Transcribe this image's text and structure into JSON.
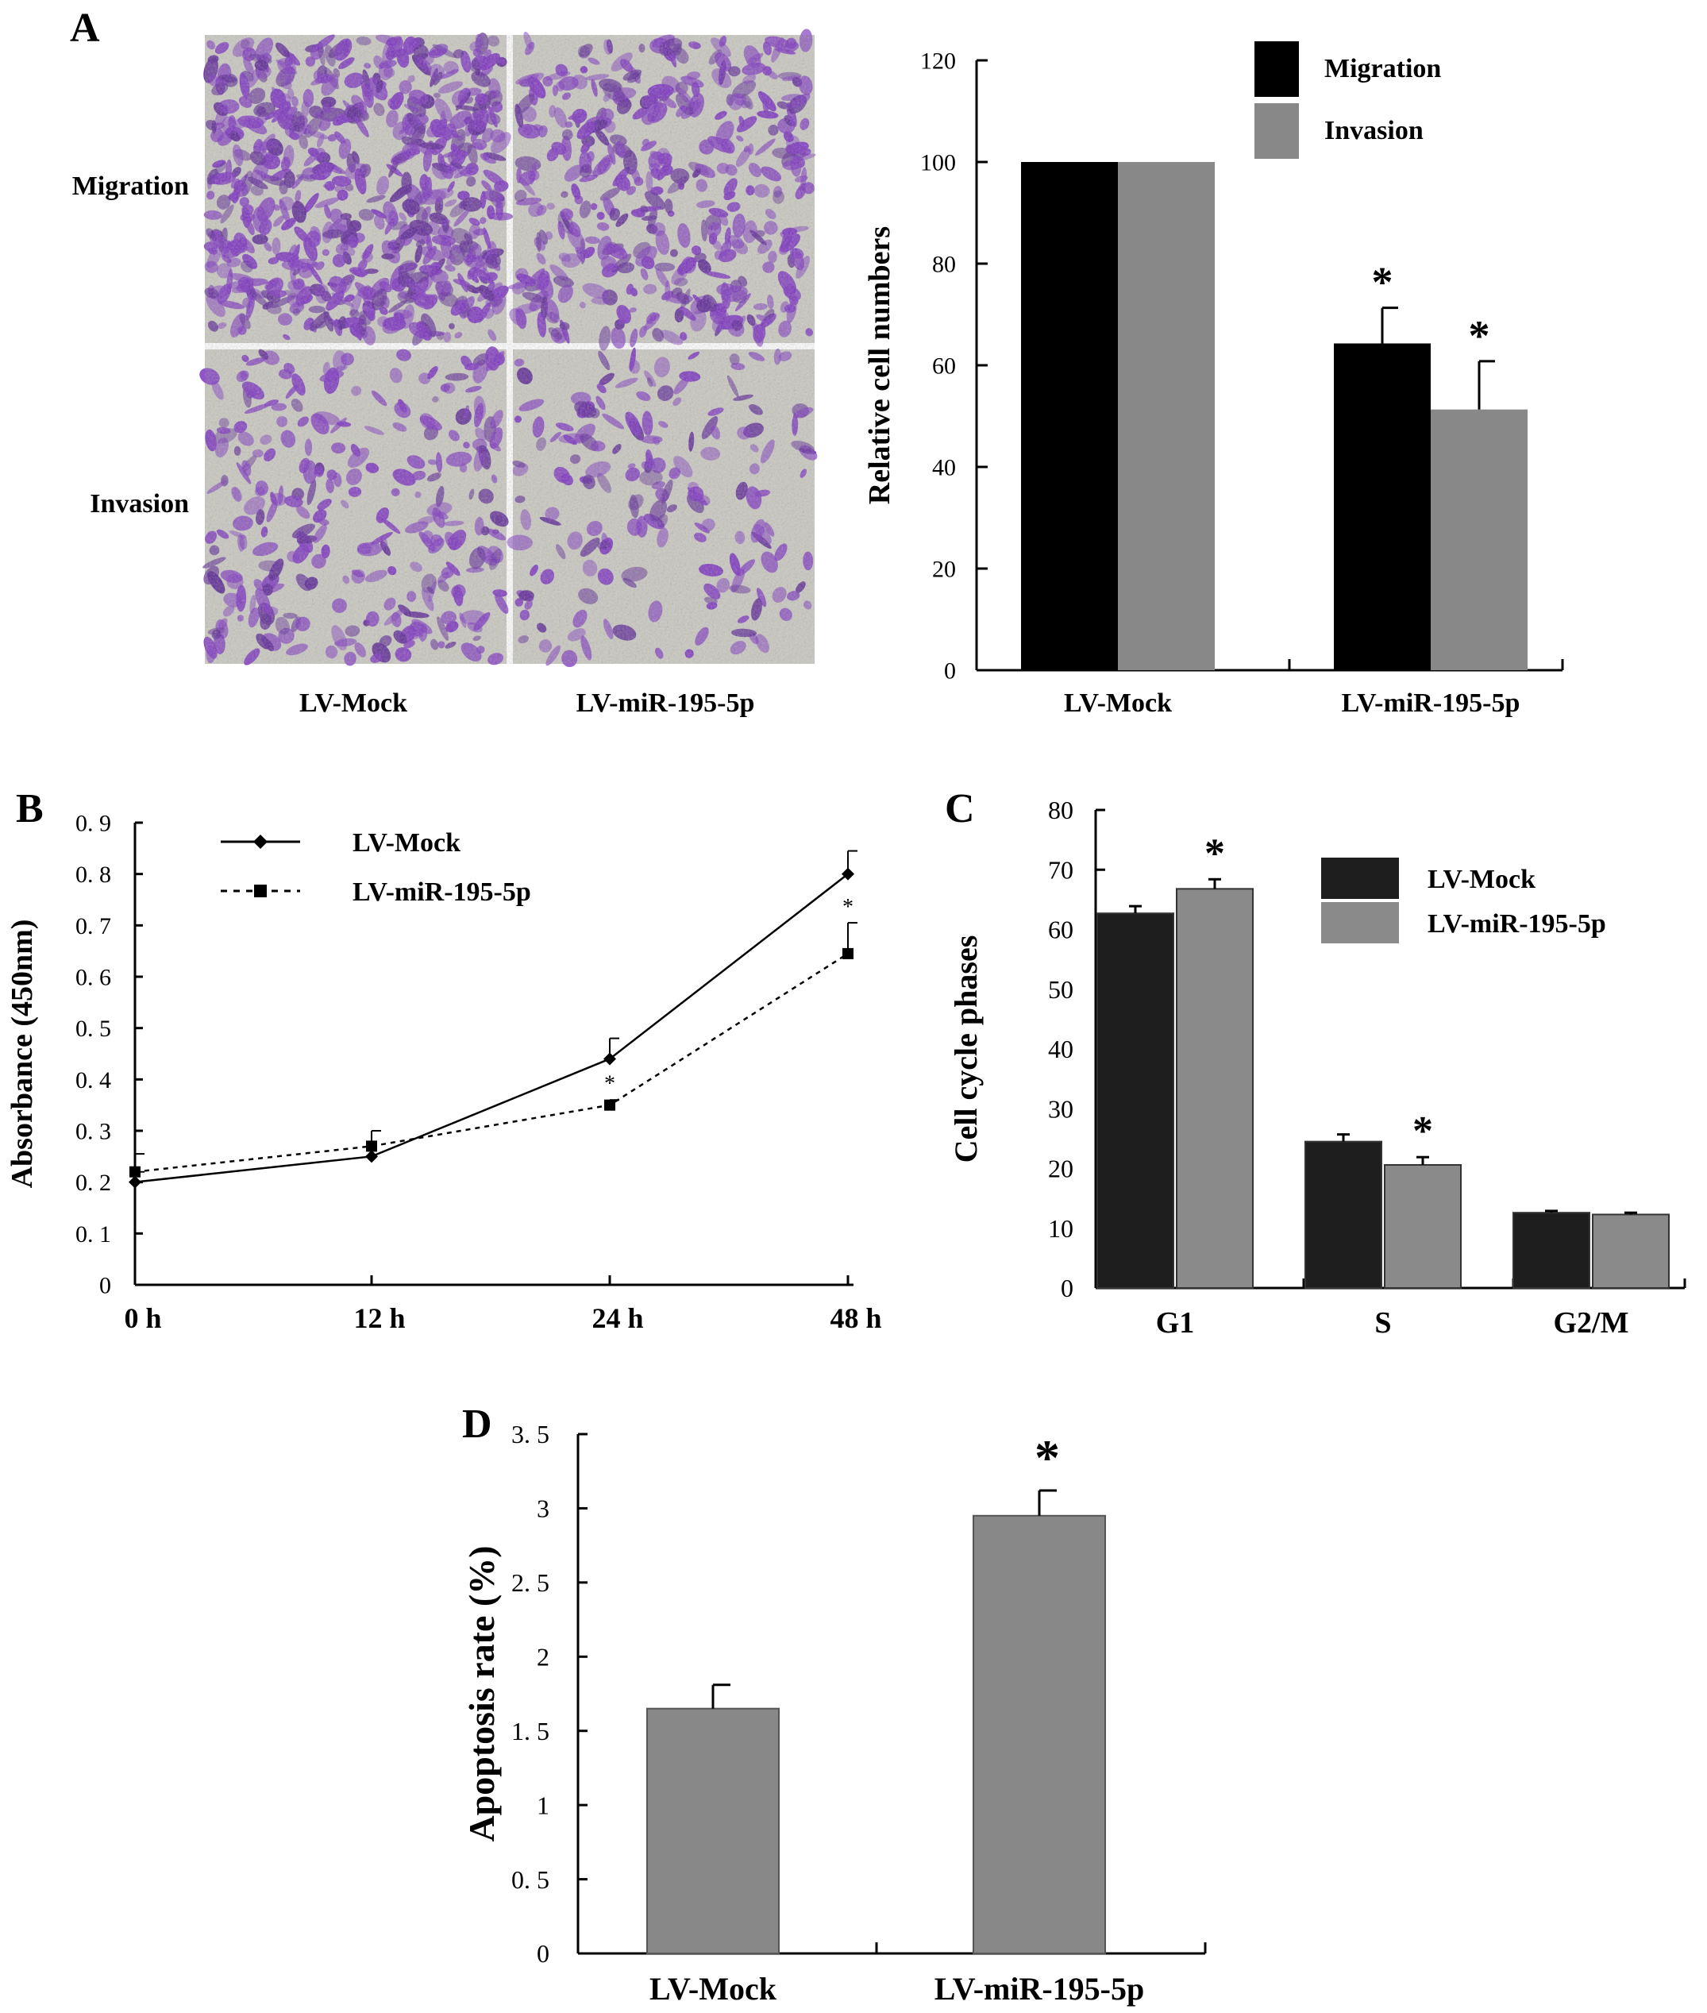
{
  "panels": {
    "A": {
      "letter": "A",
      "micrograph": {
        "row_labels": [
          "Migration",
          "Invasion"
        ],
        "col_labels": [
          "LV-Mock",
          "LV-miR-195-5p"
        ],
        "stain_color": "#7a2fbf",
        "background_color": "#c9c8c0",
        "cell_density": [
          [
            0.95,
            0.6
          ],
          [
            0.4,
            0.25
          ]
        ]
      }
    },
    "B": {
      "letter": "B"
    },
    "C": {
      "letter": "C"
    },
    "D": {
      "letter": "D"
    }
  },
  "chart_data": [
    {
      "id": "A",
      "type": "bar",
      "categories": [
        "LV-Mock",
        "LV-miR-195-5p"
      ],
      "series": [
        {
          "name": "Migration",
          "values": [
            100,
            64.3
          ],
          "errors": [
            0,
            7
          ],
          "color": "#000000"
        },
        {
          "name": "Invasion",
          "values": [
            100,
            51.3
          ],
          "errors": [
            0,
            9.5
          ],
          "color": "#888888"
        }
      ],
      "significance": [
        [
          false,
          false
        ],
        [
          true,
          true
        ]
      ],
      "significance_mark": "*",
      "ylabel": "Relative cell numbers",
      "ylim": [
        0,
        120
      ],
      "yticks": [
        "0",
        "20",
        "40",
        "60",
        "80",
        "100",
        "120"
      ],
      "legend_position": "top-right",
      "grid": false
    },
    {
      "id": "B",
      "type": "line",
      "x": [
        "0 h",
        "12 h",
        "24 h",
        "48 h"
      ],
      "series": [
        {
          "name": "LV-Mock",
          "values": [
            0.2,
            0.25,
            0.44,
            0.8
          ],
          "errors": [
            0.02,
            0,
            0.04,
            0.045
          ],
          "marker": "diamond",
          "line": "solid",
          "color": "#000000"
        },
        {
          "name": "LV-miR-195-5p",
          "values": [
            0.22,
            0.27,
            0.35,
            0.645
          ],
          "errors": [
            0.035,
            0.03,
            0.01,
            0.06
          ],
          "marker": "square",
          "line": "dashed",
          "color": "#000000"
        }
      ],
      "significance_x": [
        "24 h",
        "48 h"
      ],
      "significance_mark": "*",
      "ylabel": "Absorbance (450nm)",
      "ylim": [
        0,
        0.9
      ],
      "yticks": [
        "0",
        "0. 1",
        "0. 2",
        "0. 3",
        "0. 4",
        "0. 5",
        "0. 6",
        "0. 7",
        "0. 8",
        "0. 9"
      ],
      "legend_position": "top-left",
      "grid": false
    },
    {
      "id": "C",
      "type": "bar",
      "categories": [
        "G1",
        "S",
        "G2/M"
      ],
      "series": [
        {
          "name": "LV-Mock",
          "values": [
            62.7,
            24.5,
            12.6
          ],
          "errors": [
            1.2,
            1.2,
            0.3
          ],
          "color": "#1e1e1e"
        },
        {
          "name": "LV-miR-195-5p",
          "values": [
            66.8,
            20.6,
            12.3
          ],
          "errors": [
            1.6,
            1.3,
            0.3
          ],
          "color": "#8a8a8a"
        }
      ],
      "significance": [
        [
          false,
          true
        ],
        [
          false,
          true
        ],
        [
          false,
          false
        ]
      ],
      "significance_mark": "*",
      "ylabel": "Cell cycle phases",
      "ylim": [
        0,
        80
      ],
      "yticks": [
        "0",
        "10",
        "20",
        "30",
        "40",
        "50",
        "60",
        "70",
        "80"
      ],
      "legend_position": "top-right",
      "grid": false
    },
    {
      "id": "D",
      "type": "bar",
      "categories": [
        "LV-Mock",
        "LV-miR-195-5p"
      ],
      "series": [
        {
          "values": [
            1.65,
            2.95
          ],
          "errors": [
            0.16,
            0.17
          ],
          "color": "#888888"
        }
      ],
      "significance": [
        false,
        true
      ],
      "significance_mark": "*",
      "ylabel": "Apoptosis rate (%)",
      "ylim": [
        0,
        3.5
      ],
      "yticks": [
        "0",
        "0. 5",
        "1",
        "1. 5",
        "2",
        "2. 5",
        "3",
        "3. 5"
      ],
      "grid": false
    }
  ]
}
